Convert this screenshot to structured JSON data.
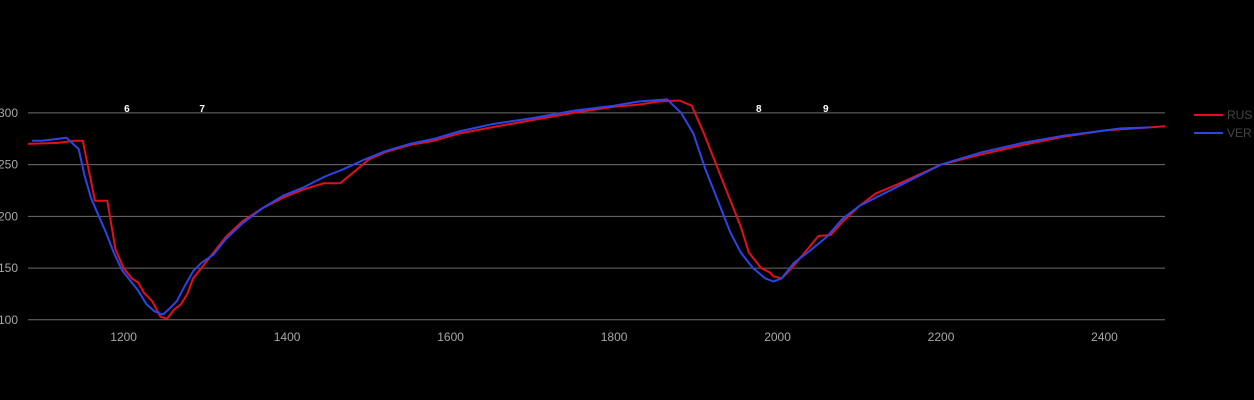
{
  "chart_data": {
    "type": "line",
    "xlim": [
      1083,
      2474
    ],
    "ylim": [
      94,
      326
    ],
    "x_ticks": [
      1200,
      1400,
      1600,
      1800,
      2000,
      2200,
      2400
    ],
    "y_ticks": [
      100,
      150,
      200,
      250,
      300
    ],
    "grid": "horizontal",
    "legend_position": "right",
    "corner_labels": [
      {
        "label": "6",
        "x": 1204
      },
      {
        "label": "7",
        "x": 1296
      },
      {
        "label": "8",
        "x": 1977
      },
      {
        "label": "9",
        "x": 2059
      }
    ],
    "series": [
      {
        "name": "RUS",
        "color": "#e0101c",
        "points": [
          [
            1083,
            270
          ],
          [
            1120,
            271
          ],
          [
            1140,
            273
          ],
          [
            1150,
            273
          ],
          [
            1165,
            215
          ],
          [
            1180,
            215
          ],
          [
            1190,
            168
          ],
          [
            1200,
            150
          ],
          [
            1210,
            140
          ],
          [
            1218,
            136
          ],
          [
            1225,
            126
          ],
          [
            1235,
            118
          ],
          [
            1245,
            103
          ],
          [
            1253,
            101
          ],
          [
            1262,
            110
          ],
          [
            1270,
            115
          ],
          [
            1278,
            125
          ],
          [
            1285,
            140
          ],
          [
            1295,
            150
          ],
          [
            1310,
            165
          ],
          [
            1325,
            180
          ],
          [
            1345,
            195
          ],
          [
            1370,
            208
          ],
          [
            1395,
            218
          ],
          [
            1420,
            226
          ],
          [
            1445,
            232
          ],
          [
            1465,
            232
          ],
          [
            1485,
            245
          ],
          [
            1500,
            255
          ],
          [
            1520,
            262
          ],
          [
            1550,
            269
          ],
          [
            1580,
            273
          ],
          [
            1610,
            280
          ],
          [
            1650,
            286
          ],
          [
            1700,
            293
          ],
          [
            1750,
            300
          ],
          [
            1800,
            306
          ],
          [
            1830,
            308
          ],
          [
            1855,
            311
          ],
          [
            1880,
            312
          ],
          [
            1895,
            307
          ],
          [
            1910,
            280
          ],
          [
            1925,
            250
          ],
          [
            1940,
            220
          ],
          [
            1955,
            190
          ],
          [
            1965,
            165
          ],
          [
            1980,
            150
          ],
          [
            1990,
            146
          ],
          [
            1995,
            142
          ],
          [
            2005,
            140
          ],
          [
            2015,
            148
          ],
          [
            2030,
            162
          ],
          [
            2050,
            181
          ],
          [
            2065,
            182
          ],
          [
            2080,
            195
          ],
          [
            2100,
            210
          ],
          [
            2120,
            222
          ],
          [
            2150,
            232
          ],
          [
            2200,
            250
          ],
          [
            2250,
            260
          ],
          [
            2300,
            269
          ],
          [
            2350,
            277
          ],
          [
            2400,
            283
          ],
          [
            2474,
            287
          ]
        ]
      },
      {
        "name": "VER",
        "color": "#2c44e8",
        "points": [
          [
            1088,
            273
          ],
          [
            1100,
            273
          ],
          [
            1130,
            276
          ],
          [
            1145,
            265
          ],
          [
            1152,
            240
          ],
          [
            1160,
            218
          ],
          [
            1168,
            203
          ],
          [
            1178,
            185
          ],
          [
            1188,
            165
          ],
          [
            1198,
            148
          ],
          [
            1208,
            138
          ],
          [
            1218,
            128
          ],
          [
            1228,
            115
          ],
          [
            1238,
            108
          ],
          [
            1248,
            105
          ],
          [
            1255,
            110
          ],
          [
            1265,
            118
          ],
          [
            1275,
            133
          ],
          [
            1285,
            147
          ],
          [
            1295,
            155
          ],
          [
            1310,
            163
          ],
          [
            1325,
            178
          ],
          [
            1345,
            193
          ],
          [
            1370,
            208
          ],
          [
            1395,
            220
          ],
          [
            1420,
            228
          ],
          [
            1445,
            238
          ],
          [
            1470,
            246
          ],
          [
            1495,
            255
          ],
          [
            1520,
            263
          ],
          [
            1550,
            270
          ],
          [
            1580,
            275
          ],
          [
            1610,
            282
          ],
          [
            1650,
            289
          ],
          [
            1700,
            295
          ],
          [
            1750,
            302
          ],
          [
            1800,
            307
          ],
          [
            1830,
            311
          ],
          [
            1865,
            313
          ],
          [
            1882,
            300
          ],
          [
            1897,
            280
          ],
          [
            1912,
            245
          ],
          [
            1927,
            215
          ],
          [
            1942,
            185
          ],
          [
            1955,
            165
          ],
          [
            1970,
            150
          ],
          [
            1985,
            140
          ],
          [
            1995,
            137
          ],
          [
            2005,
            140
          ],
          [
            2020,
            155
          ],
          [
            2040,
            167
          ],
          [
            2060,
            180
          ],
          [
            2080,
            198
          ],
          [
            2100,
            210
          ],
          [
            2130,
            222
          ],
          [
            2160,
            234
          ],
          [
            2200,
            250
          ],
          [
            2250,
            262
          ],
          [
            2300,
            271
          ],
          [
            2350,
            278
          ],
          [
            2400,
            283
          ],
          [
            2420,
            285
          ],
          [
            2455,
            286
          ]
        ]
      }
    ]
  }
}
